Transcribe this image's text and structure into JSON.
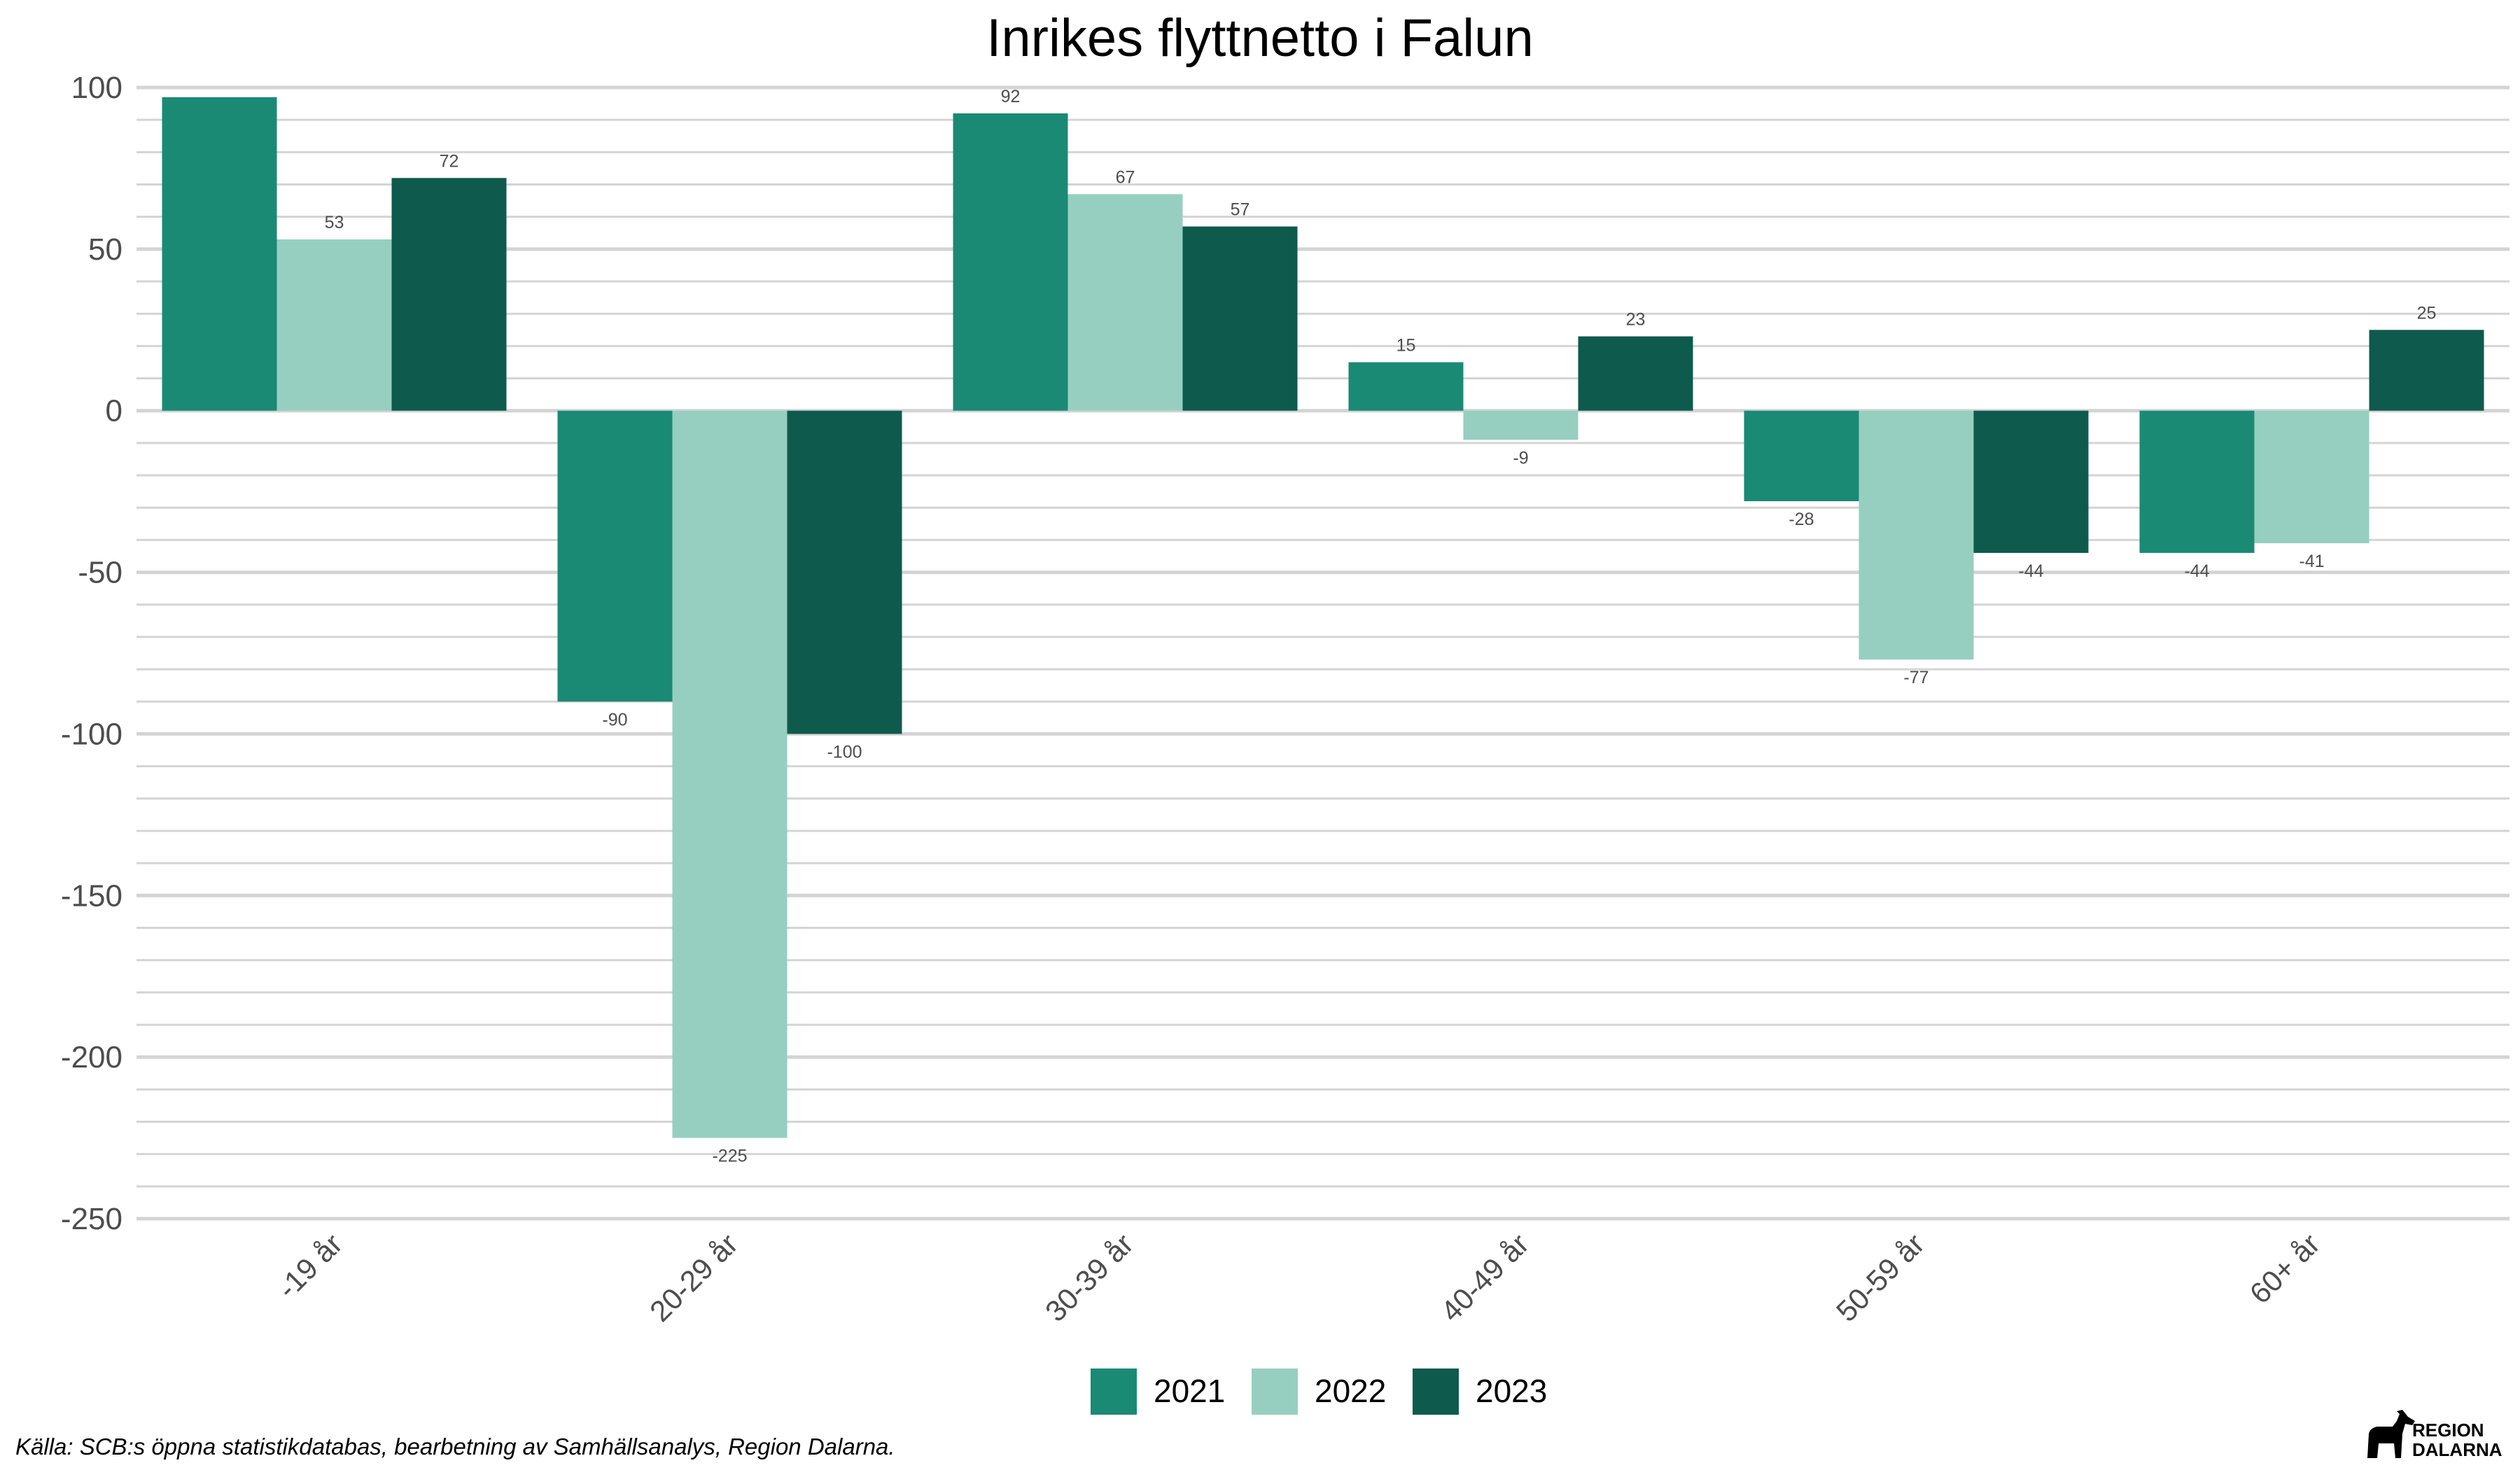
{
  "chart_data": {
    "type": "bar",
    "title": "Inrikes flyttnetto i Falun",
    "xlabel": "",
    "ylabel": "",
    "categories": [
      "-19 år",
      "20-29 år",
      "30-39 år",
      "40-49 år",
      "50-59 år",
      "60+ år"
    ],
    "series": [
      {
        "name": "2021",
        "color": "#1a8a74",
        "values": [
          97,
          -90,
          92,
          15,
          -28,
          -44
        ],
        "labels": [
          "",
          "-90",
          "92",
          "15",
          "-28",
          "-44"
        ]
      },
      {
        "name": "2022",
        "color": "#96cfc0",
        "values": [
          53,
          -225,
          67,
          -9,
          -77,
          -41
        ],
        "labels": [
          "53",
          "-225",
          "67",
          "-9",
          "-77",
          "-41"
        ]
      },
      {
        "name": "2023",
        "color": "#0e5a4d",
        "values": [
          72,
          -100,
          57,
          23,
          -44,
          25
        ],
        "labels": [
          "72",
          "-100",
          "57",
          "23",
          "-44",
          "25"
        ]
      }
    ],
    "ylim": [
      -250,
      100
    ],
    "yticks": [
      100,
      50,
      0,
      -50,
      -100,
      -150,
      -200,
      -250
    ],
    "ytick_labels": [
      "100",
      "50",
      "0",
      "-50",
      "-100",
      "-150",
      "-200",
      "-250"
    ],
    "grid": true,
    "legend_position": "bottom"
  },
  "caption": "Källa: SCB:s öppna statistikdatabas, bearbetning av Samhällsanalys, Region Dalarna.",
  "logo": {
    "line1": "REGION",
    "line2": "DALARNA"
  }
}
